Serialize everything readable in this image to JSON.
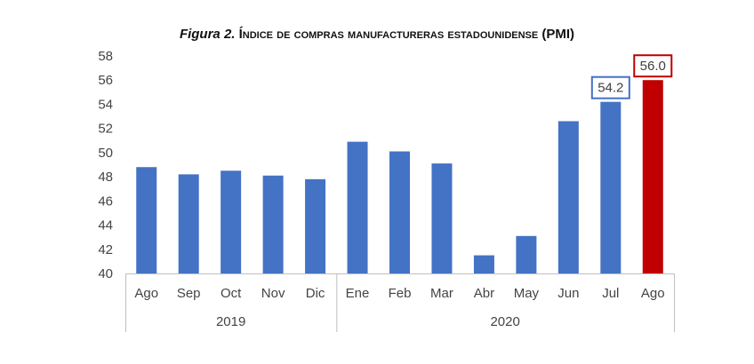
{
  "chart_data": {
    "type": "bar",
    "title": {
      "figure_label": "Figura 2.",
      "text": "Índice de compras manufactureras estadounidense",
      "suffix": "(PMI)"
    },
    "categories": [
      "Ago",
      "Sep",
      "Oct",
      "Nov",
      "Dic",
      "Ene",
      "Feb",
      "Mar",
      "Abr",
      "May",
      "Jun",
      "Jul",
      "Ago"
    ],
    "groups": [
      {
        "label": "2019",
        "count": 5
      },
      {
        "label": "2020",
        "count": 8
      }
    ],
    "values": [
      48.8,
      48.2,
      48.5,
      48.1,
      47.8,
      50.9,
      50.1,
      49.1,
      41.5,
      43.1,
      52.6,
      54.2,
      56.0
    ],
    "colors": [
      "#4472c4",
      "#4472c4",
      "#4472c4",
      "#4472c4",
      "#4472c4",
      "#4472c4",
      "#4472c4",
      "#4472c4",
      "#4472c4",
      "#4472c4",
      "#4472c4",
      "#4472c4",
      "#c00000"
    ],
    "data_labels": [
      {
        "index": 11,
        "text": "54.2",
        "border_color": "#4472c4"
      },
      {
        "index": 12,
        "text": "56.0",
        "border_color": "#c00000"
      }
    ],
    "ylim": [
      40,
      58
    ],
    "yticks": [
      "40",
      "42",
      "44",
      "46",
      "48",
      "50",
      "52",
      "54",
      "56",
      "58"
    ],
    "xlabel": "",
    "ylabel": "",
    "grid": false,
    "legend": "none"
  }
}
